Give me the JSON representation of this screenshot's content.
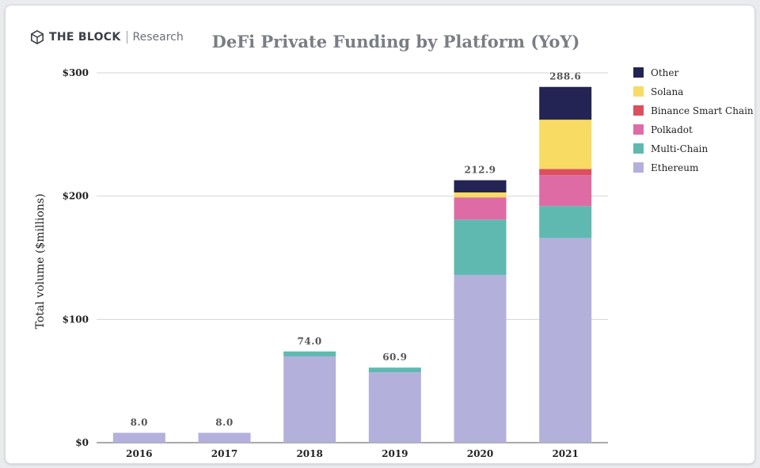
{
  "brand": {
    "name": "THE BLOCK",
    "sub": "Research",
    "icon": "cube-logo-icon"
  },
  "chart_data": {
    "type": "bar",
    "stacked": true,
    "title": "DeFi Private Funding by Platform (YoY)",
    "xlabel": "",
    "ylabel": "Total volume ($millions)",
    "ylim": [
      0,
      300
    ],
    "yticks": [
      0,
      100,
      200,
      300
    ],
    "ytick_labels": [
      "$0",
      "$100",
      "$200",
      "$300"
    ],
    "grid": true,
    "legend_position": "right",
    "categories": [
      "2016",
      "2017",
      "2018",
      "2019",
      "2020",
      "2021"
    ],
    "totals": [
      "8.0",
      "8.0",
      "74.0",
      "60.9",
      "212.9",
      "288.6"
    ],
    "series": [
      {
        "name": "Ethereum",
        "color": "#b4b0dc",
        "values": [
          8.0,
          8.0,
          70.0,
          57.0,
          136.0,
          166.0
        ]
      },
      {
        "name": "Multi-Chain",
        "color": "#60b9b1",
        "values": [
          0,
          0,
          4.0,
          3.9,
          45.0,
          26.0
        ]
      },
      {
        "name": "Polkadot",
        "color": "#df6ba5",
        "values": [
          0,
          0,
          0,
          0,
          18.0,
          25.0
        ]
      },
      {
        "name": "Binance Smart Chain",
        "color": "#dc4f61",
        "values": [
          0,
          0,
          0,
          0,
          0,
          5.0
        ]
      },
      {
        "name": "Solana",
        "color": "#f8db63",
        "values": [
          0,
          0,
          0,
          0,
          4.0,
          40.0
        ]
      },
      {
        "name": "Other",
        "color": "#232454",
        "values": [
          0,
          0,
          0,
          0,
          9.9,
          26.6
        ]
      }
    ],
    "legend_order": [
      "Other",
      "Solana",
      "Binance Smart Chain",
      "Polkadot",
      "Multi-Chain",
      "Ethereum"
    ]
  }
}
